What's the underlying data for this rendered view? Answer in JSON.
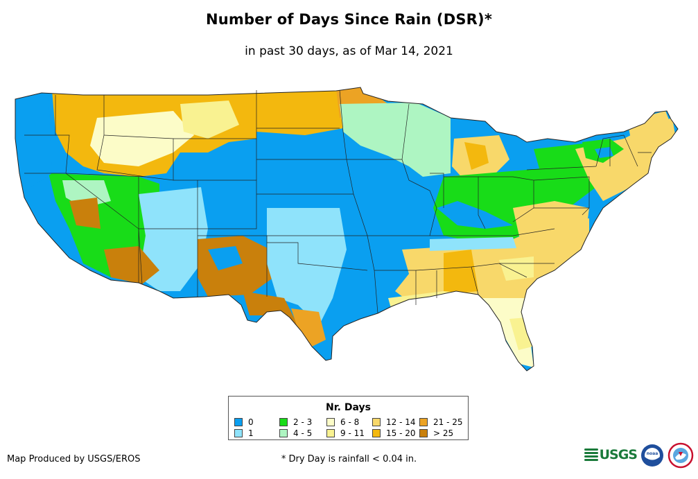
{
  "title": "Number of Days Since Rain (DSR)*",
  "subtitle": "in past 30 days, as of Mar 14, 2021",
  "legend": {
    "title": "Nr. Days",
    "items": [
      {
        "label": "0",
        "color": "#0a9ff0"
      },
      {
        "label": "1",
        "color": "#8fe3fb"
      },
      {
        "label": "2 - 3",
        "color": "#18dc18"
      },
      {
        "label": "4 - 5",
        "color": "#aef5c2"
      },
      {
        "label": "6 - 8",
        "color": "#fcfcc8"
      },
      {
        "label": "9 - 11",
        "color": "#f9f291"
      },
      {
        "label": "12 - 14",
        "color": "#f8d86a"
      },
      {
        "label": "15 - 20",
        "color": "#f3b80e"
      },
      {
        "label": "21 - 25",
        "color": "#eca324"
      },
      {
        "label": "> 25",
        "color": "#c9800c"
      }
    ]
  },
  "credit": "Map Produced by USGS/EROS",
  "footnote": "* Dry Day is rainfall < 0.04 in.",
  "logos": {
    "usgs": "USGS",
    "noaa": "noaa"
  }
}
